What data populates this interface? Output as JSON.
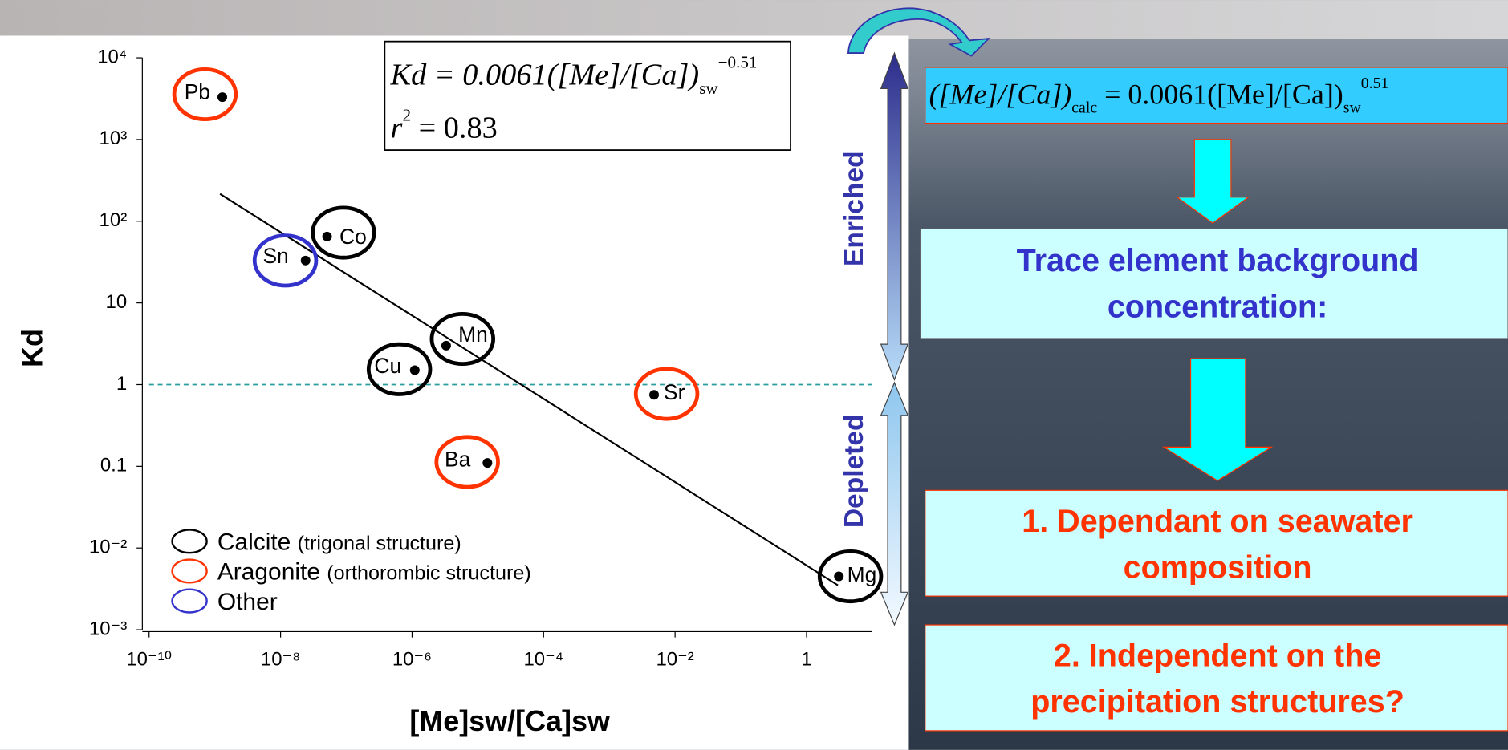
{
  "chart_data": {
    "type": "scatter",
    "x_label": "[Me]sw/[Ca]sw",
    "y_label": "Kd",
    "xscale": "log",
    "yscale": "log",
    "xlim": [
      1e-10,
      10
    ],
    "ylim": [
      0.001,
      10000
    ],
    "xticks": [
      {
        "value": 1e-10,
        "label": "10⁻¹⁰"
      },
      {
        "value": 1e-08,
        "label": "10⁻⁸"
      },
      {
        "value": 1e-06,
        "label": "10⁻⁶"
      },
      {
        "value": 0.0001,
        "label": "10⁻⁴"
      },
      {
        "value": 0.01,
        "label": "10⁻²"
      },
      1
    ],
    "yticks": [
      {
        "value": 0.001,
        "label": "10⁻³"
      },
      {
        "value": 0.01,
        "label": "10⁻²"
      },
      0.1,
      1,
      10,
      {
        "value": 100,
        "label": "10²"
      },
      {
        "value": 1000,
        "label": "10³"
      },
      {
        "value": 10000,
        "label": "10⁴"
      }
    ],
    "legend": "bottom-left",
    "series": [
      {
        "name": "Calcite",
        "description": "(trigonal structure)",
        "color": "#000000",
        "labels": [
          "Co",
          "Mn",
          "Cu",
          "Mg"
        ],
        "x": [
          5.1e-08,
          3.3e-06,
          1.1e-06,
          3.1
        ],
        "values": [
          65,
          3,
          1.5,
          0.0045
        ]
      },
      {
        "name": "Aragonite",
        "description": "(orthorombic structure)",
        "color": "#ff3300",
        "labels": [
          "Pb",
          "Sr",
          "Ba"
        ],
        "x": [
          1.3e-09,
          0.0048,
          1.4e-05
        ],
        "values": [
          3300,
          0.75,
          0.11
        ]
      },
      {
        "name": "Other",
        "color": "#3333cc",
        "labels": [
          "Sn"
        ],
        "x": [
          2.4e-08
        ],
        "values": [
          33
        ]
      }
    ],
    "fit": {
      "type": "line",
      "color": "#000000",
      "x": [
        1.2e-09,
        3
      ],
      "values": [
        216,
        0.0035
      ]
    },
    "reference_line": {
      "value": 1,
      "color": "#2a9d9d"
    },
    "equation": [
      {
        "t": "Kd = 0.0061([Me]/[Ca])"
      },
      {
        "t": "sw",
        "pos": "sub"
      },
      {
        "t": "−0.51",
        "pos": "sup"
      }
    ],
    "r_squared": [
      {
        "t": "r"
      },
      {
        "t": "2",
        "pos": "sup"
      },
      {
        "t": " = 0.83"
      }
    ]
  },
  "annotations": {
    "enriched": "Enriched",
    "depleted": "Depleted"
  },
  "flow": {
    "formula": [
      {
        "t": "([Me]/[Ca])"
      },
      {
        "t": "calc",
        "pos": "sub"
      },
      {
        "t": " = 0.0061([Me]/[Ca])"
      },
      {
        "t": "sw",
        "pos": "sub"
      },
      {
        "t": "0.51",
        "pos": "sup"
      }
    ],
    "boxes": [
      {
        "lines": [
          "Trace element background",
          "concentration:"
        ],
        "color": "#3333cc"
      },
      {
        "lines": [
          "1. Dependant on seawater",
          "composition"
        ],
        "color": "#ff3300"
      },
      {
        "lines": [
          "2. Independent on the",
          "precipitation structures?"
        ],
        "color": "#ff3300"
      }
    ]
  }
}
